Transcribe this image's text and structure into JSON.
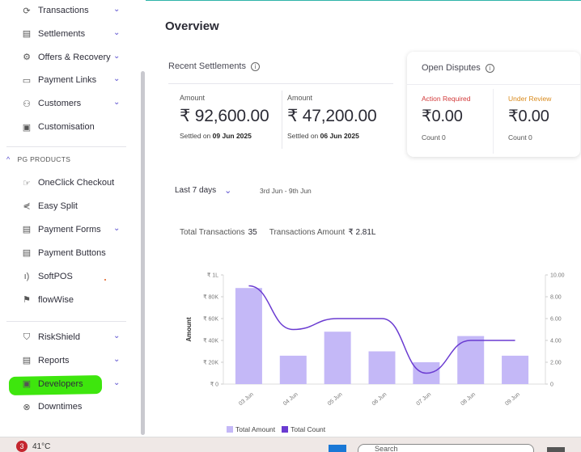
{
  "sidebar": {
    "items_top": [
      {
        "label": "Transactions",
        "icon": "transactions-icon",
        "glyph": "⟳",
        "chevron": true
      },
      {
        "label": "Settlements",
        "icon": "settlements-icon",
        "glyph": "▤",
        "chevron": true
      },
      {
        "label": "Offers & Recovery",
        "icon": "offers-icon",
        "glyph": "⚙",
        "chevron": true
      },
      {
        "label": "Payment Links",
        "icon": "payment-links-icon",
        "glyph": "▭",
        "chevron": true
      },
      {
        "label": "Customers",
        "icon": "customers-icon",
        "glyph": "⚇",
        "chevron": true
      },
      {
        "label": "Customisation",
        "icon": "customisation-icon",
        "glyph": "▣",
        "chevron": false
      }
    ],
    "section_label": "PG PRODUCTS",
    "items_pg": [
      {
        "label": "OneClick Checkout",
        "icon": "oneclick-icon",
        "glyph": "☞",
        "chevron": false
      },
      {
        "label": "Easy Split",
        "icon": "split-icon",
        "glyph": "⋞",
        "chevron": false
      },
      {
        "label": "Payment Forms",
        "icon": "payment-forms-icon",
        "glyph": "▤",
        "chevron": true
      },
      {
        "label": "Payment Buttons",
        "icon": "payment-buttons-icon",
        "glyph": "▤",
        "chevron": false
      },
      {
        "label": "SoftPOS",
        "icon": "softpos-icon",
        "glyph": "ı)",
        "chevron": false
      },
      {
        "label": "flowWise",
        "icon": "flowwise-icon",
        "glyph": "⚑",
        "chevron": false
      }
    ],
    "items_bottom": [
      {
        "label": "RiskShield",
        "icon": "riskshield-icon",
        "glyph": "⛉",
        "chevron": true
      },
      {
        "label": "Reports",
        "icon": "reports-icon",
        "glyph": "▤",
        "chevron": true
      },
      {
        "label": "Developers",
        "icon": "developers-icon",
        "glyph": "▣",
        "chevron": true
      },
      {
        "label": "Downtimes",
        "icon": "downtimes-icon",
        "glyph": "⊗",
        "chevron": false
      }
    ]
  },
  "main": {
    "title": "Overview",
    "recent_settlements": {
      "title": "Recent Settlements",
      "cols": [
        {
          "label": "Amount",
          "value": "₹ 92,600.00",
          "settled_prefix": "Settled on",
          "settled_date": "09 Jun 2025"
        },
        {
          "label": "Amount",
          "value": "₹ 47,200.00",
          "settled_prefix": "Settled on",
          "settled_date": "06 Jun 2025"
        }
      ]
    },
    "open_disputes": {
      "title": "Open Disputes",
      "cols": [
        {
          "label": "Action Required",
          "value": "₹0.00",
          "count": "Count  0",
          "color": "#d23a3a"
        },
        {
          "label": "Under Review",
          "value": "₹0.00",
          "count": "Count  0",
          "color": "#d98a1c"
        }
      ]
    },
    "range_label": "Last 7 days",
    "range_dates": "3rd Jun - 9th Jun",
    "totals": {
      "tx_label": "Total Transactions",
      "tx_value": "35",
      "amt_label": "Transactions Amount",
      "amt_value": "₹ 2.81L"
    }
  },
  "chart_data": {
    "type": "bar",
    "categories": [
      "03 Jun",
      "04 Jun",
      "05 Jun",
      "06 Jun",
      "07 Jun",
      "08 Jun",
      "09 Jun"
    ],
    "series": [
      {
        "name": "Total Amount",
        "axis": "left",
        "values": [
          88000,
          26000,
          48000,
          30000,
          20000,
          44000,
          26000
        ],
        "color": "#c4b8f7"
      },
      {
        "name": "Total Count",
        "axis": "right",
        "type": "line",
        "values": [
          9,
          5,
          6,
          6,
          1,
          4,
          4
        ],
        "color": "#6a3bd1"
      }
    ],
    "ylabel": "Amount",
    "y_left_ticks": [
      "₹ 1L",
      "₹ 80K",
      "₹ 60K",
      "₹ 40K",
      "₹ 20K",
      "₹ 0"
    ],
    "y_left_lim": [
      0,
      100000
    ],
    "y_right_ticks": [
      "10.00",
      "8.00",
      "6.00",
      "4.00",
      "2.00",
      "0"
    ],
    "y_right_lim": [
      0,
      10
    ],
    "legend": "bottom"
  },
  "taskbar": {
    "badge": "3",
    "temp": "41°C",
    "search_placeholder": "Search"
  }
}
